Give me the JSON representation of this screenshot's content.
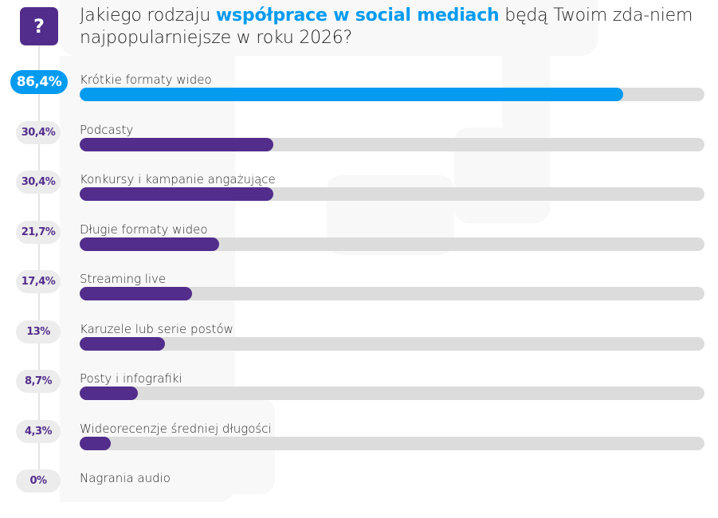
{
  "header": {
    "title_part1": "Jakiego rodzaju ",
    "title_highlight": "współprace w social mediach",
    "title_part2": " będą Twoim zda-niem najpopularniejsze w roku 2026?",
    "icon": "question-mark-icon",
    "icon_glyph": "?"
  },
  "colors": {
    "accent_blue": "#049bf1",
    "accent_purple": "#522d8c",
    "track_gray": "#dcdcdc",
    "pill_gray": "#ececec"
  },
  "chart_data": {
    "type": "bar",
    "orientation": "horizontal",
    "title": "Jakiego rodzaju współprace w social mediach będą Twoim zda-niem najpopularniejsze w roku 2026?",
    "xlim": [
      0,
      100
    ],
    "unit": "%",
    "categories": [
      "Krótkie formaty wideo",
      "Podcasty",
      "Konkursy i kampanie angażujące",
      "Długie formaty wideo",
      "Streaming live",
      "Karuzele lub serie postów",
      "Posty i infografiki",
      "Wideorecenzje średniej długości",
      "Nagrania audio"
    ],
    "values": [
      86.4,
      30.4,
      30.4,
      21.7,
      17.4,
      13,
      8.7,
      4.3,
      0
    ],
    "value_labels": [
      "86,4%",
      "30,4%",
      "30,4%",
      "21,7%",
      "17,4%",
      "13%",
      "8,7%",
      "4,3%",
      "0%"
    ],
    "highlight_index": 0
  }
}
